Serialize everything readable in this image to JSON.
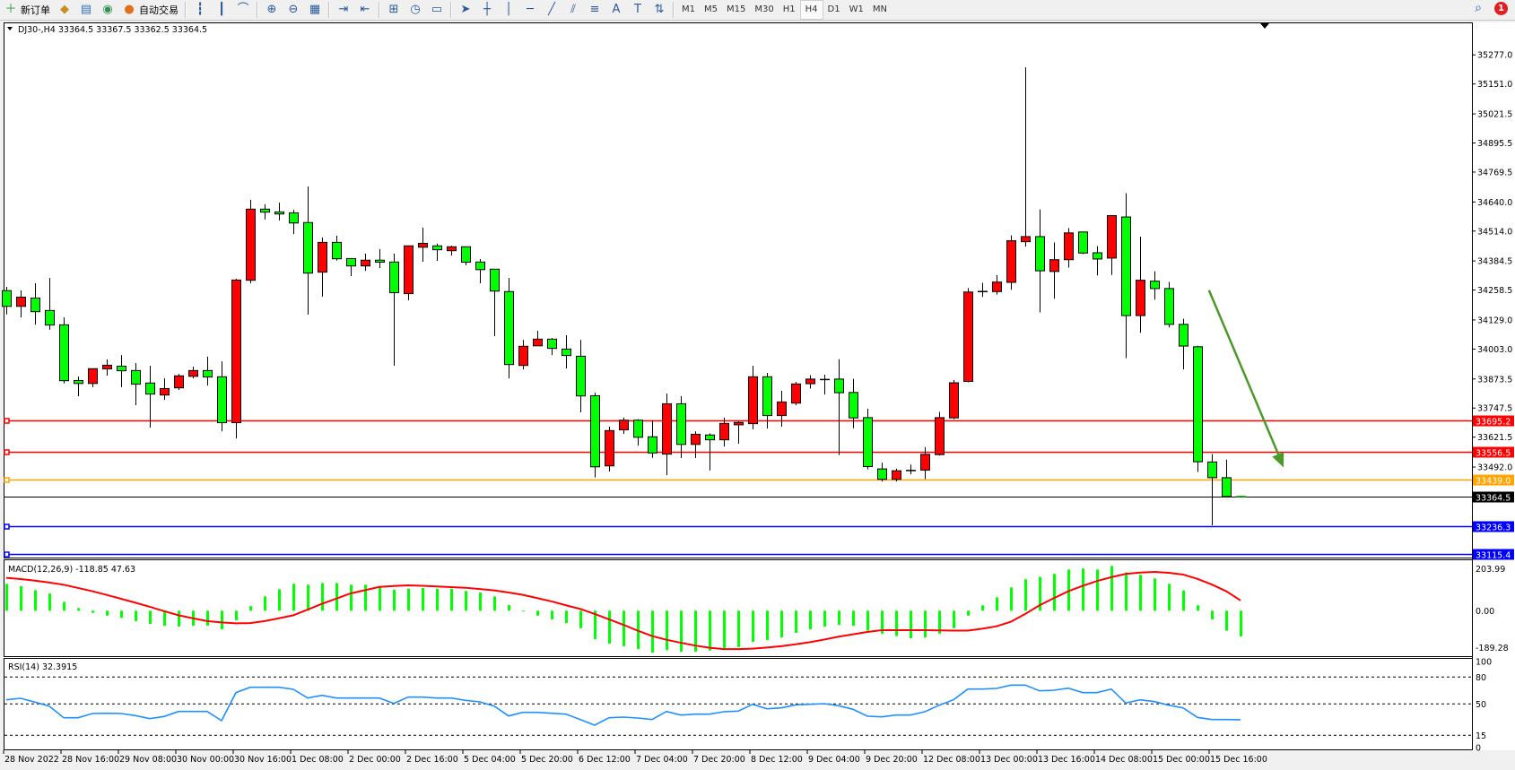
{
  "toolbar": {
    "items": [
      {
        "label": "新订单",
        "icon": "new-order-icon",
        "glyph": "＋",
        "color": "#2a9a2a"
      },
      {
        "label": "",
        "icon": "gold-ingot-icon",
        "glyph": "◆",
        "color": "#c89020"
      },
      {
        "label": "",
        "icon": "database-icon",
        "glyph": "▤",
        "color": "#3070c0"
      },
      {
        "label": "",
        "icon": "signal-icon",
        "glyph": "◉",
        "color": "#309050"
      },
      {
        "label": "自动交易",
        "icon": "autotrading-icon",
        "glyph": "●",
        "color": "#e07020"
      }
    ],
    "chart_tools": [
      {
        "icon": "bar-chart-icon",
        "glyph": "┇"
      },
      {
        "icon": "candlestick-icon",
        "glyph": "┃"
      },
      {
        "icon": "line-chart-icon",
        "glyph": "⌒"
      },
      {
        "icon": "zoom-in-icon",
        "glyph": "⊕"
      },
      {
        "icon": "zoom-out-icon",
        "glyph": "⊖"
      },
      {
        "icon": "tile-windows-icon",
        "glyph": "▦"
      },
      {
        "icon": "autoscroll-icon",
        "glyph": "⇥"
      },
      {
        "icon": "chart-shift-icon",
        "glyph": "⇤"
      },
      {
        "icon": "indicators-icon",
        "glyph": "⊞"
      },
      {
        "icon": "periods-icon",
        "glyph": "◷"
      },
      {
        "icon": "templates-icon",
        "glyph": "▭"
      },
      {
        "icon": "cursor-icon",
        "glyph": "➤"
      },
      {
        "icon": "crosshair-icon",
        "glyph": "┼"
      },
      {
        "icon": "vertical-line-icon",
        "glyph": "│"
      },
      {
        "icon": "horizontal-line-icon",
        "glyph": "─"
      },
      {
        "icon": "trendline-icon",
        "glyph": "╱"
      },
      {
        "icon": "equidistant-channel-icon",
        "glyph": "⫽"
      },
      {
        "icon": "fibonacci-icon",
        "glyph": "≡"
      },
      {
        "icon": "text-icon",
        "glyph": "A"
      },
      {
        "icon": "text-label-icon",
        "glyph": "T"
      },
      {
        "icon": "arrows-icon",
        "glyph": "⇅"
      }
    ],
    "timeframes": [
      "M1",
      "M5",
      "M15",
      "M30",
      "H1",
      "H4",
      "D1",
      "W1",
      "MN"
    ],
    "active_timeframe": "H4",
    "notification_count": "1"
  },
  "chart": {
    "header": "DJ30-,H4  33364.5 33367.5 33362.5 33364.5",
    "bull_color": "#ff0000",
    "bear_color": "#00ff00",
    "arrow_color": "#4a9a2a"
  },
  "chart_data": {
    "type": "candlestick",
    "symbol": "DJ30-",
    "timeframe": "H4",
    "price_ticks": [
      "35277.0",
      "35151.0",
      "35021.5",
      "34895.5",
      "34769.5",
      "34640.0",
      "34514.0",
      "34384.5",
      "34258.5",
      "34129.0",
      "34003.0",
      "33873.5",
      "33747.5",
      "33621.5",
      "33492.0"
    ],
    "time_labels": [
      "28 Nov 2022",
      "28 Nov 16:00",
      "29 Nov 08:00",
      "30 Nov 00:00",
      "30 Nov 16:00",
      "1 Dec 08:00",
      "2 Dec 00:00",
      "2 Dec 16:00",
      "5 Dec 04:00",
      "5 Dec 20:00",
      "6 Dec 12:00",
      "7 Dec 04:00",
      "7 Dec 20:00",
      "8 Dec 12:00",
      "9 Dec 04:00",
      "9 Dec 20:00",
      "12 Dec 08:00",
      "13 Dec 00:00",
      "13 Dec 16:00",
      "14 Dec 08:00",
      "15 Dec 00:00",
      "15 Dec 16:00"
    ],
    "ohlc": [
      [
        34256,
        34272,
        34153,
        34188
      ],
      [
        34188,
        34257,
        34140,
        34228
      ],
      [
        34224,
        34288,
        34109,
        34165
      ],
      [
        34170,
        34311,
        34087,
        34107
      ],
      [
        34108,
        34140,
        33854,
        33866
      ],
      [
        33867,
        33884,
        33799,
        33854
      ],
      [
        33854,
        33918,
        33838,
        33918
      ],
      [
        33917,
        33958,
        33888,
        33933
      ],
      [
        33929,
        33977,
        33838,
        33909
      ],
      [
        33910,
        33942,
        33760,
        33851
      ],
      [
        33856,
        33931,
        33663,
        33808
      ],
      [
        33804,
        33876,
        33783,
        33832
      ],
      [
        33835,
        33895,
        33826,
        33887
      ],
      [
        33885,
        33927,
        33876,
        33910
      ],
      [
        33910,
        33970,
        33845,
        33882
      ],
      [
        33883,
        33950,
        33647,
        33684
      ],
      [
        33684,
        34307,
        33616,
        34302
      ],
      [
        34301,
        34649,
        34288,
        34609
      ],
      [
        34609,
        34630,
        34564,
        34596
      ],
      [
        34597,
        34637,
        34560,
        34588
      ],
      [
        34593,
        34606,
        34501,
        34549
      ],
      [
        34551,
        34707,
        34152,
        34332
      ],
      [
        34336,
        34486,
        34230,
        34465
      ],
      [
        34465,
        34494,
        34386,
        34394
      ],
      [
        34395,
        34395,
        34319,
        34363
      ],
      [
        34363,
        34416,
        34342,
        34388
      ],
      [
        34388,
        34436,
        34354,
        34379
      ],
      [
        34380,
        34416,
        33931,
        34247
      ],
      [
        34243,
        34450,
        34214,
        34450
      ],
      [
        34444,
        34529,
        34381,
        34461
      ],
      [
        34450,
        34460,
        34385,
        34433
      ],
      [
        34429,
        34451,
        34408,
        34446
      ],
      [
        34446,
        34446,
        34366,
        34379
      ],
      [
        34380,
        34393,
        34288,
        34347
      ],
      [
        34349,
        34349,
        34059,
        34254
      ],
      [
        34252,
        34311,
        33876,
        33936
      ],
      [
        33932,
        34043,
        33915,
        34015
      ],
      [
        34017,
        34082,
        34017,
        34046
      ],
      [
        34046,
        34051,
        33977,
        34006
      ],
      [
        34003,
        34063,
        33919,
        33975
      ],
      [
        33972,
        34043,
        33729,
        33800
      ],
      [
        33801,
        33814,
        33447,
        33493
      ],
      [
        33497,
        33667,
        33473,
        33650
      ],
      [
        33653,
        33706,
        33636,
        33695
      ],
      [
        33695,
        33700,
        33585,
        33621
      ],
      [
        33623,
        33695,
        33532,
        33553
      ],
      [
        33548,
        33810,
        33457,
        33766
      ],
      [
        33766,
        33799,
        33531,
        33590
      ],
      [
        33590,
        33647,
        33531,
        33634
      ],
      [
        33631,
        33638,
        33477,
        33610
      ],
      [
        33610,
        33706,
        33581,
        33681
      ],
      [
        33675,
        33690,
        33593,
        33685
      ],
      [
        33680,
        33931,
        33655,
        33883
      ],
      [
        33883,
        33900,
        33659,
        33715
      ],
      [
        33715,
        33822,
        33667,
        33774
      ],
      [
        33769,
        33861,
        33760,
        33852
      ],
      [
        33853,
        33890,
        33832,
        33873
      ],
      [
        33870,
        33892,
        33806,
        33871
      ],
      [
        33873,
        33959,
        33544,
        33814
      ],
      [
        33815,
        33874,
        33660,
        33705
      ],
      [
        33706,
        33745,
        33482,
        33494
      ],
      [
        33484,
        33511,
        33430,
        33439
      ],
      [
        33439,
        33485,
        33430,
        33476
      ],
      [
        33476,
        33503,
        33461,
        33477
      ],
      [
        33479,
        33578,
        33440,
        33547
      ],
      [
        33546,
        33731,
        33542,
        33706
      ],
      [
        33705,
        33869,
        33699,
        33857
      ],
      [
        33863,
        34267,
        33859,
        34250
      ],
      [
        34251,
        34290,
        34229,
        34252
      ],
      [
        34252,
        34323,
        34239,
        34293
      ],
      [
        34292,
        34495,
        34260,
        34472
      ],
      [
        34468,
        35223,
        34447,
        34490
      ],
      [
        34490,
        34608,
        34162,
        34342
      ],
      [
        34339,
        34465,
        34221,
        34390
      ],
      [
        34390,
        34527,
        34356,
        34506
      ],
      [
        34510,
        34510,
        34414,
        34419
      ],
      [
        34420,
        34449,
        34322,
        34393
      ],
      [
        34397,
        34583,
        34324,
        34581
      ],
      [
        34575,
        34678,
        33964,
        34148
      ],
      [
        34148,
        34490,
        34074,
        34301
      ],
      [
        34297,
        34340,
        34217,
        34265
      ],
      [
        34265,
        34294,
        34097,
        34110
      ],
      [
        34110,
        34134,
        33915,
        34016
      ],
      [
        34013,
        34017,
        33471,
        33515
      ],
      [
        33514,
        33548,
        33240,
        33446
      ],
      [
        33446,
        33524,
        33362,
        33364.5
      ],
      [
        33364.5,
        33367.5,
        33362.5,
        33364.5
      ]
    ],
    "hlines": [
      {
        "price": 33695.2,
        "label": "33695.2",
        "color": "#ff0000"
      },
      {
        "price": 33556.5,
        "label": "33556.5",
        "color": "#ff0000"
      },
      {
        "price": 33439.0,
        "label": "33439.0",
        "color": "#ffa500"
      },
      {
        "price": 33364.5,
        "label": "33364.5",
        "color": "#000000"
      },
      {
        "price": 33236.3,
        "label": "33236.3",
        "color": "#0000ff"
      },
      {
        "price": 33115.4,
        "label": "33115.4",
        "color": "#0000ff"
      }
    ],
    "arrow": {
      "from_bar": 83.8,
      "from_price": 34258,
      "to_bar": 89,
      "to_price": 33490
    },
    "macd": {
      "label": "MACD(12,26,9) -118.85 47.63",
      "ticks": [
        "203.99",
        "0.00",
        "-189.28"
      ],
      "range": [
        -189.28,
        203.99
      ],
      "histogram_color": "#00ff00",
      "signal_color": "#ff0000",
      "histogram": [
        124,
        113,
        95,
        79,
        41,
        12,
        -10,
        -23,
        -33,
        -48,
        -61,
        -69,
        -73,
        -69,
        -69,
        -86,
        -44,
        21,
        66,
        99,
        124,
        120,
        128,
        128,
        120,
        120,
        108,
        97,
        101,
        105,
        101,
        101,
        91,
        84,
        66,
        26,
        -1,
        -23,
        -40,
        -57,
        -81,
        -131,
        -152,
        -164,
        -177,
        -193,
        -182,
        -189,
        -189,
        -184,
        -175,
        -168,
        -144,
        -135,
        -123,
        -102,
        -86,
        -73,
        -65,
        -69,
        -92,
        -106,
        -117,
        -127,
        -123,
        -106,
        -81,
        -23,
        25,
        62,
        108,
        145,
        156,
        170,
        190,
        195,
        190,
        207,
        177,
        166,
        149,
        124,
        94,
        25,
        -40,
        -92,
        -118.85
      ],
      "signal": [
        152,
        146,
        139,
        130,
        120,
        105,
        90,
        73,
        55,
        37,
        18,
        -2,
        -21,
        -35,
        -48,
        -54,
        -58,
        -57,
        -48,
        -35,
        -21,
        5,
        32,
        56,
        80,
        95,
        110,
        114,
        117,
        115,
        112,
        109,
        106,
        100,
        94,
        84,
        73,
        58,
        43,
        25,
        8,
        -15,
        -40,
        -65,
        -92,
        -117,
        -134,
        -148,
        -161,
        -171,
        -177,
        -177,
        -175,
        -170,
        -164,
        -155,
        -145,
        -133,
        -120,
        -109,
        -98,
        -90,
        -90,
        -90,
        -90,
        -91,
        -92,
        -92,
        -83,
        -72,
        -51,
        -15,
        25,
        58,
        90,
        115,
        137,
        155,
        170,
        176,
        179,
        175,
        167,
        147,
        121,
        90,
        47.63
      ]
    },
    "rsi": {
      "label": "RSI(14) 32.3915",
      "ticks": [
        "100",
        "80",
        "50",
        "15",
        "0"
      ],
      "levels": [
        80,
        50,
        15
      ],
      "color": "#1e90ff",
      "values": [
        54.6,
        56.3,
        52,
        47.6,
        34.6,
        34.6,
        39.3,
        39.6,
        39.3,
        37,
        33.6,
        36,
        41.6,
        41.6,
        41.6,
        31.3,
        62.6,
        68.6,
        68.6,
        68.6,
        66.3,
        56.6,
        59.6,
        56.6,
        56.6,
        56.6,
        56.6,
        50.6,
        57.6,
        57.6,
        56.6,
        56.6,
        54,
        52.3,
        47.6,
        36.6,
        40.6,
        40.6,
        39.6,
        38.6,
        32.6,
        26.3,
        34.6,
        35.3,
        34.3,
        32.6,
        41.6,
        37.6,
        38.6,
        38.6,
        41.3,
        42,
        49.6,
        44.6,
        45.6,
        49,
        49.6,
        50.3,
        48,
        44,
        36.3,
        35.6,
        37.6,
        37.6,
        41.3,
        48.6,
        54.6,
        66.6,
        66.6,
        67.3,
        71,
        71,
        64.6,
        65.3,
        67.6,
        62.6,
        62.6,
        66.6,
        51,
        54.6,
        52.6,
        48.6,
        45.6,
        35,
        32.6,
        32.6,
        32.3915
      ]
    }
  }
}
